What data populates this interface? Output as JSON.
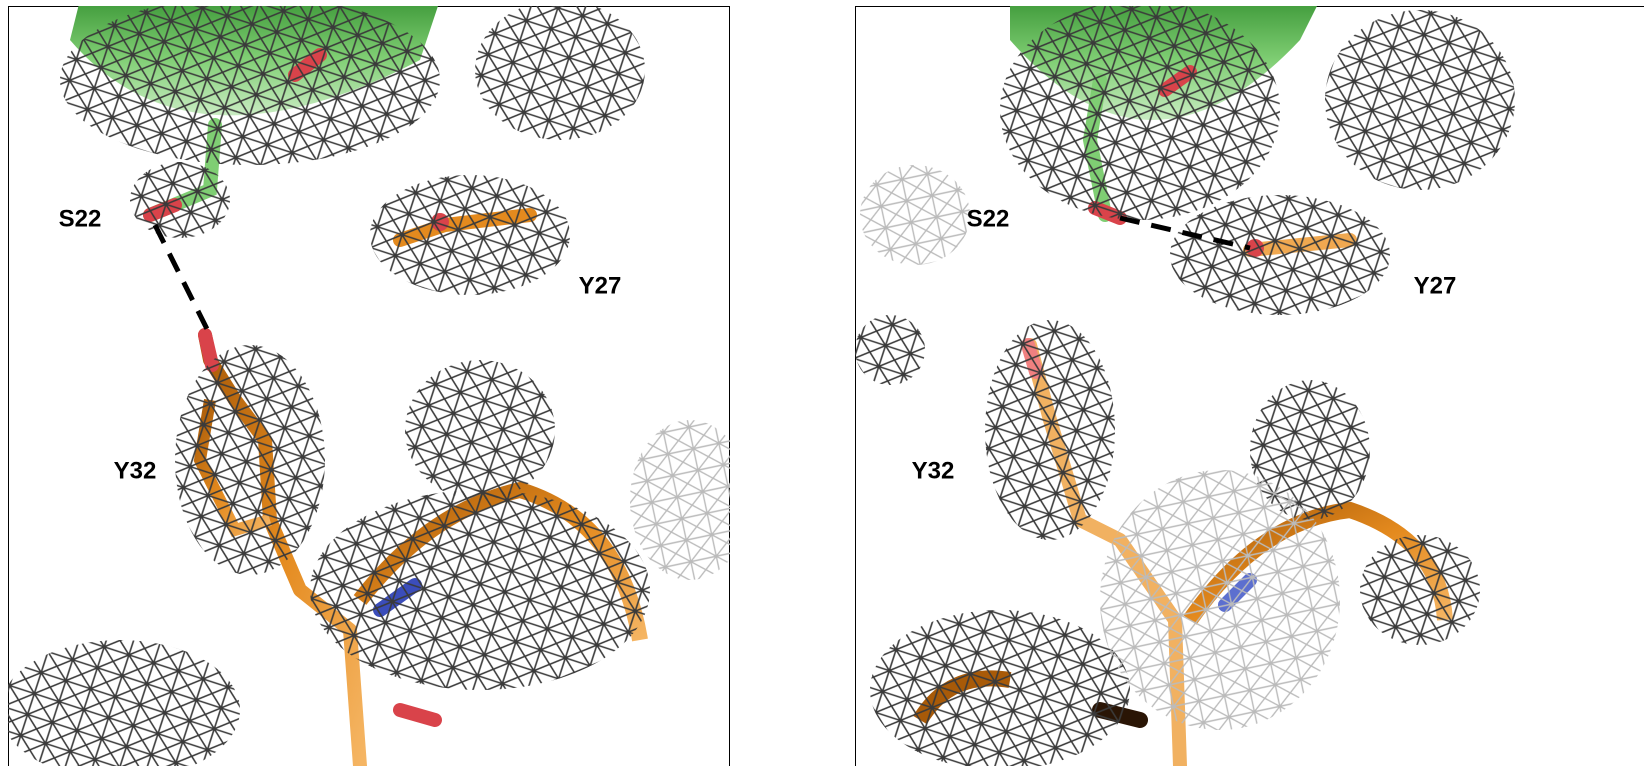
{
  "panels": [
    {
      "labels": [
        "S22",
        "Y27",
        "Y32"
      ]
    },
    {
      "labels": [
        "S22",
        "Y27",
        "Y32"
      ]
    }
  ]
}
